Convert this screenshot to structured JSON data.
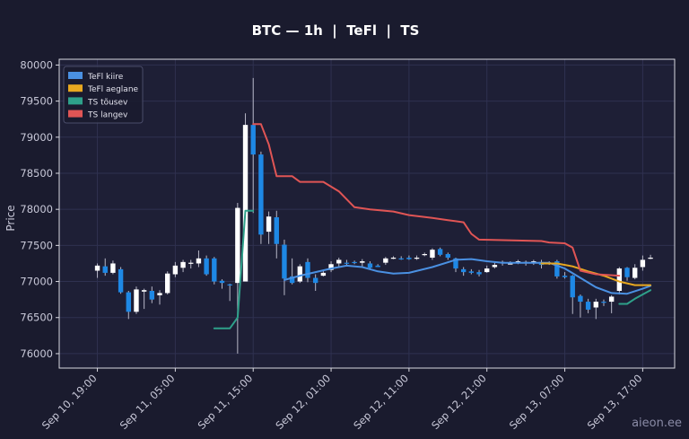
{
  "chart_data": {
    "type": "candlestick",
    "title": "BTC — 1h  |  TeFl  |  TS",
    "xlabel": "",
    "ylabel": "Price",
    "ylim": [
      75800,
      80080
    ],
    "yticks": [
      76000,
      76500,
      77000,
      77500,
      78000,
      78500,
      79000,
      79500,
      80000
    ],
    "x_ticks": [
      {
        "label": "Sep 10, 19:00",
        "i": 0
      },
      {
        "label": "Sep 11, 05:00",
        "i": 10
      },
      {
        "label": "Sep 11, 15:00",
        "i": 20
      },
      {
        "label": "Sep 12, 01:00",
        "i": 30
      },
      {
        "label": "Sep 12, 11:00",
        "i": 40
      },
      {
        "label": "Sep 12, 21:00",
        "i": 50
      },
      {
        "label": "Sep 13, 07:00",
        "i": 60
      },
      {
        "label": "Sep 13, 17:00",
        "i": 70
      }
    ],
    "x_index_range": [
      -4.9,
      74.1
    ],
    "grid": true,
    "legend": {
      "position": "top-left",
      "entries": [
        {
          "name": "TeFl kiire",
          "color": "#4a90e2"
        },
        {
          "name": "TeFl aeglane",
          "color": "#e8a820"
        },
        {
          "name": "TS tõusev",
          "color": "#2ea08a"
        },
        {
          "name": "TS langev",
          "color": "#e05555"
        }
      ]
    },
    "up_color": "#ffffff",
    "down_color": "#1e88e5",
    "candles": [
      [
        77150,
        77220,
        77050,
        77250
      ],
      [
        77210,
        77120,
        77080,
        77320
      ],
      [
        77120,
        77250,
        77100,
        77290
      ],
      [
        77170,
        76850,
        76830,
        77200
      ],
      [
        76850,
        76580,
        76480,
        76870
      ],
      [
        76580,
        76890,
        76550,
        76930
      ],
      [
        76860,
        76880,
        76620,
        76900
      ],
      [
        76870,
        76750,
        76700,
        76930
      ],
      [
        76810,
        76840,
        76680,
        76880
      ],
      [
        76840,
        77110,
        76820,
        77140
      ],
      [
        77100,
        77220,
        77060,
        77270
      ],
      [
        77190,
        77270,
        77130,
        77300
      ],
      [
        77250,
        77260,
        77180,
        77300
      ],
      [
        77250,
        77320,
        77200,
        77430
      ],
      [
        77320,
        77100,
        77080,
        77360
      ],
      [
        77320,
        77000,
        76960,
        77340
      ],
      [
        77010,
        76980,
        76900,
        77030
      ],
      [
        76960,
        76950,
        76730,
        76970
      ],
      [
        76980,
        78020,
        76000,
        78090
      ],
      [
        77000,
        79170,
        77000,
        79330
      ],
      [
        79170,
        78760,
        77950,
        79820
      ],
      [
        78760,
        77650,
        77520,
        78800
      ],
      [
        77690,
        77900,
        77520,
        77970
      ],
      [
        77890,
        77520,
        77320,
        77980
      ],
      [
        77510,
        77040,
        76810,
        77580
      ],
      [
        77070,
        76980,
        76960,
        77320
      ],
      [
        77000,
        77210,
        76980,
        77240
      ],
      [
        77270,
        77050,
        76990,
        77320
      ],
      [
        77050,
        76980,
        76870,
        77100
      ],
      [
        77080,
        77120,
        77070,
        77160
      ],
      [
        77160,
        77240,
        77130,
        77280
      ],
      [
        77250,
        77300,
        77200,
        77330
      ],
      [
        77260,
        77250,
        77220,
        77300
      ],
      [
        77270,
        77260,
        77240,
        77290
      ],
      [
        77260,
        77280,
        77200,
        77310
      ],
      [
        77250,
        77190,
        77160,
        77280
      ],
      [
        77220,
        77200,
        77200,
        77240
      ],
      [
        77260,
        77320,
        77230,
        77340
      ],
      [
        77320,
        77330,
        77310,
        77350
      ],
      [
        77320,
        77310,
        77300,
        77350
      ],
      [
        77330,
        77310,
        77300,
        77360
      ],
      [
        77330,
        77330,
        77300,
        77360
      ],
      [
        77370,
        77380,
        77350,
        77400
      ],
      [
        77330,
        77440,
        77300,
        77460
      ],
      [
        77450,
        77370,
        77350,
        77470
      ],
      [
        77380,
        77330,
        77300,
        77400
      ],
      [
        77320,
        77180,
        77130,
        77330
      ],
      [
        77170,
        77130,
        77080,
        77200
      ],
      [
        77140,
        77120,
        77100,
        77170
      ],
      [
        77130,
        77100,
        77070,
        77160
      ],
      [
        77130,
        77180,
        77120,
        77220
      ],
      [
        77200,
        77230,
        77180,
        77260
      ],
      [
        77260,
        77270,
        77220,
        77290
      ],
      [
        77250,
        77250,
        77240,
        77280
      ],
      [
        77270,
        77280,
        77240,
        77300
      ],
      [
        77270,
        77270,
        77220,
        77290
      ],
      [
        77250,
        77280,
        77230,
        77300
      ],
      [
        77270,
        77230,
        77180,
        77300
      ],
      [
        77250,
        77260,
        77230,
        77280
      ],
      [
        77280,
        77070,
        77040,
        77300
      ],
      [
        77080,
        77060,
        77040,
        77130
      ],
      [
        77080,
        76780,
        76550,
        77090
      ],
      [
        76800,
        76720,
        76500,
        76820
      ],
      [
        76720,
        76610,
        76560,
        76760
      ],
      [
        76640,
        76720,
        76480,
        76760
      ],
      [
        76720,
        76710,
        76660,
        76750
      ],
      [
        76720,
        76790,
        76560,
        76810
      ],
      [
        76870,
        77180,
        76820,
        77200
      ],
      [
        77190,
        77060,
        77010,
        77200
      ],
      [
        77050,
        77190,
        77030,
        77240
      ],
      [
        77200,
        77300,
        77150,
        77360
      ],
      [
        77320,
        77330,
        77310,
        77370
      ]
    ],
    "series": [
      {
        "name": "TeFl kiire",
        "color": "#4a90e2",
        "points": [
          [
            24,
            77020
          ],
          [
            26,
            77080
          ],
          [
            30,
            77180
          ],
          [
            32,
            77220
          ],
          [
            34,
            77200
          ],
          [
            36,
            77140
          ],
          [
            38,
            77110
          ],
          [
            40,
            77120
          ],
          [
            43,
            77200
          ],
          [
            46,
            77300
          ],
          [
            48,
            77310
          ],
          [
            50,
            77280
          ],
          [
            52,
            77260
          ],
          [
            55,
            77260
          ],
          [
            58,
            77260
          ],
          [
            60,
            77180
          ],
          [
            62,
            77050
          ],
          [
            64,
            76920
          ],
          [
            66,
            76840
          ],
          [
            68,
            76830
          ],
          [
            70,
            76900
          ],
          [
            71,
            76940
          ]
        ]
      },
      {
        "name": "TeFl aeglane",
        "color": "#e8a820",
        "points": [
          [
            57,
            77250
          ],
          [
            59,
            77250
          ],
          [
            61,
            77210
          ],
          [
            63,
            77140
          ],
          [
            65,
            77080
          ],
          [
            67,
            77000
          ],
          [
            69,
            76950
          ],
          [
            71,
            76950
          ]
        ]
      },
      {
        "name": "TS tõusev",
        "color": "#2ea08a",
        "segments": [
          [
            [
              15,
              76350
            ],
            [
              17,
              76350
            ],
            [
              18,
              76500
            ],
            [
              19,
              77980
            ],
            [
              20,
              77980
            ]
          ],
          [
            [
              67,
              76690
            ],
            [
              68,
              76690
            ],
            [
              69,
              76760
            ],
            [
              70,
              76820
            ],
            [
              71,
              76880
            ]
          ]
        ]
      },
      {
        "name": "TS langev",
        "color": "#e05555",
        "points": [
          [
            20,
            79180
          ],
          [
            21,
            79180
          ],
          [
            22,
            78900
          ],
          [
            23,
            78460
          ],
          [
            25,
            78460
          ],
          [
            26,
            78380
          ],
          [
            29,
            78380
          ],
          [
            31,
            78250
          ],
          [
            32,
            78140
          ],
          [
            33,
            78030
          ],
          [
            35,
            78000
          ],
          [
            38,
            77970
          ],
          [
            40,
            77920
          ],
          [
            43,
            77880
          ],
          [
            45,
            77850
          ],
          [
            47,
            77820
          ],
          [
            48,
            77660
          ],
          [
            49,
            77580
          ],
          [
            57,
            77560
          ],
          [
            58,
            77540
          ],
          [
            60,
            77530
          ],
          [
            61,
            77470
          ],
          [
            62,
            77150
          ],
          [
            64,
            77100
          ],
          [
            67,
            77080
          ]
        ]
      }
    ]
  },
  "watermark": "aieon.ee"
}
